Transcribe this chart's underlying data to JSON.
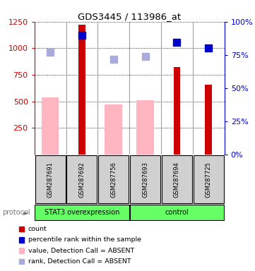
{
  "title": "GDS3445 / 113986_at",
  "samples": [
    "GSM287691",
    "GSM287692",
    "GSM287756",
    "GSM287693",
    "GSM287694",
    "GSM287725"
  ],
  "count_values": [
    null,
    1220,
    null,
    null,
    820,
    660
  ],
  "count_color": "#CC0000",
  "absent_value_bars": [
    540,
    null,
    470,
    510,
    null,
    null
  ],
  "absent_value_color": "#FFB6C1",
  "percentile_rank_present": [
    null,
    1120,
    null,
    null,
    1055,
    1005
  ],
  "percentile_rank_absent": [
    960,
    null,
    895,
    920,
    null,
    null
  ],
  "percentile_rank_present_color": "#0000CC",
  "percentile_rank_absent_color": "#AAAADD",
  "ylim_left": [
    0,
    1250
  ],
  "ylim_right": [
    0,
    100
  ],
  "yticks_left": [
    250,
    500,
    750,
    1000,
    1250
  ],
  "yticks_right": [
    0,
    25,
    50,
    75,
    100
  ],
  "left_tick_color": "#CC0000",
  "right_tick_color": "#0000CC",
  "group1_label": "STAT3 overexpression",
  "group2_label": "control",
  "group1_count": 3,
  "group2_count": 3,
  "legend_items": [
    {
      "color": "#CC0000",
      "label": "count"
    },
    {
      "color": "#0000CC",
      "label": "percentile rank within the sample"
    },
    {
      "color": "#FFB6C1",
      "label": "value, Detection Call = ABSENT"
    },
    {
      "color": "#AAAADD",
      "label": "rank, Detection Call = ABSENT"
    }
  ],
  "absent_bar_width": 0.55,
  "count_bar_width": 0.22,
  "dot_size": 55,
  "sample_box_color": "#D0D0D0",
  "group_box_color": "#66FF66",
  "protocol_label": "protocol",
  "protocol_arrow": "►"
}
